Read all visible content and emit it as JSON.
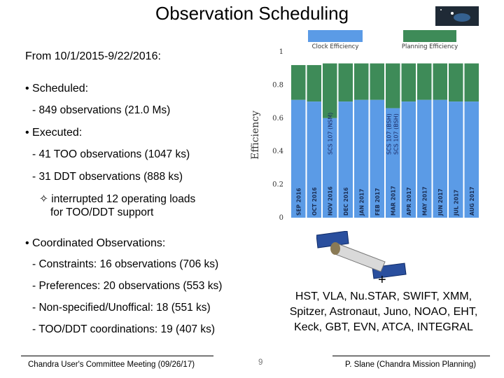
{
  "header": {
    "title": "Observation Scheduling"
  },
  "left": {
    "period": "From 10/1/2015-9/22/2016:",
    "scheduled_heading": "• Scheduled:",
    "scheduled_obs": "- 849 observations (21.0 Ms)",
    "executed_heading": "• Executed:",
    "too_obs": "- 41 TOO observations (1047 ks)",
    "ddt_obs": "- 31 DDT observations (888 ks)",
    "interrupted_line1": "✧ interrupted 12 operating loads",
    "interrupted_line2": "for TOO/DDT support",
    "coordinated_heading": "• Coordinated Observations:",
    "constraints": "- Constraints:  16 observations (706 ks)",
    "preferences": "- Preferences: 20 observations (553 ks)",
    "nonspecified": "- Non-specified/Unoffical: 18 (551 ks)",
    "toodd_coord": "- TOO/DDT coordinations: 19 (407 ks)"
  },
  "right": {
    "plus": "+",
    "facilities": "HST, VLA, Nu.STAR, SWIFT, XMM, Spitzer, Astronaut, Juno, NOAO, EHT, Keck, GBT, EVN, ATCA, INTEGRAL"
  },
  "footer": {
    "meeting": "Chandra User's Committee Meeting (09/26/17)",
    "page": "9",
    "author": "P. Slane (Chandra Mission Planning)"
  },
  "colors": {
    "clock": "#5b9be6",
    "planning": "#3e8b58",
    "axis": "#333333"
  },
  "chart_data": {
    "type": "bar",
    "title": "",
    "ylabel": "Efficiency",
    "xlabel": "",
    "ylim": [
      0,
      1
    ],
    "yticks": [
      0,
      0.2,
      0.4,
      0.6,
      0.8,
      1
    ],
    "legend": [
      "Clock Efficiency",
      "Planning Efficiency"
    ],
    "categories": [
      "SEP 2016",
      "OCT 2016",
      "NOV 2016",
      "DEC 2016",
      "JAN 2017",
      "FEB 2017",
      "MAR 2017",
      "APR 2017",
      "MAY 2017",
      "JUN 2017",
      "JUL 2017",
      "AUG 2017"
    ],
    "series": [
      {
        "name": "Clock Efficiency",
        "values": [
          0.71,
          0.7,
          0.6,
          0.7,
          0.71,
          0.71,
          0.66,
          0.7,
          0.71,
          0.71,
          0.7,
          0.7
        ]
      },
      {
        "name": "Planning Efficiency",
        "values": [
          0.92,
          0.92,
          0.93,
          0.93,
          0.93,
          0.93,
          0.93,
          0.93,
          0.93,
          0.93,
          0.93,
          0.93
        ]
      }
    ],
    "annotations": [
      {
        "category": "NOV 2016",
        "text": "SCS 107 (NSM)"
      },
      {
        "category": "MAR 2017",
        "text": "SCS 107 (BSH)"
      },
      {
        "category": "MAR 2017",
        "text": "SCS 107 (BSH)"
      }
    ]
  }
}
